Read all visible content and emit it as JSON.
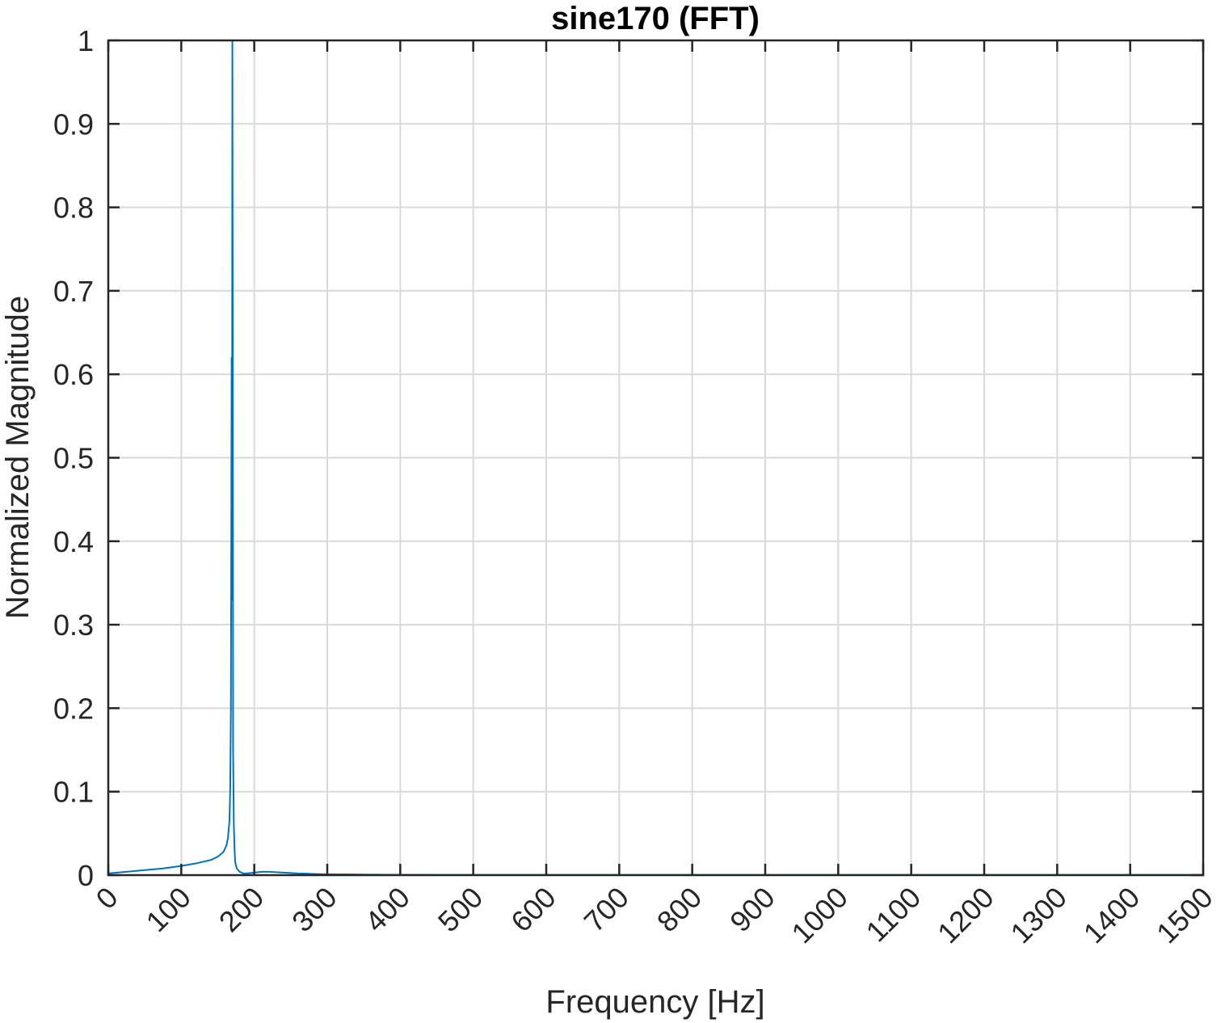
{
  "chart_data": {
    "type": "line",
    "title": "sine170 (FFT)",
    "xlabel": "Frequency [Hz]",
    "ylabel": "Normalized Magnitude",
    "xlim": [
      0,
      1500
    ],
    "ylim": [
      0,
      1
    ],
    "xticks": [
      0,
      100,
      200,
      300,
      400,
      500,
      600,
      700,
      800,
      900,
      1000,
      1100,
      1200,
      1300,
      1400,
      1500
    ],
    "xtick_labels": [
      "0",
      "100",
      "200",
      "300",
      "400",
      "500",
      "600",
      "700",
      "800",
      "900",
      "1000",
      "1100",
      "1200",
      "1300",
      "1400",
      "1500"
    ],
    "yticks": [
      0,
      0.1,
      0.2,
      0.3,
      0.4,
      0.5,
      0.6,
      0.7,
      0.8,
      0.9,
      1
    ],
    "ytick_labels": [
      "0",
      "0.1",
      "0.2",
      "0.3",
      "0.4",
      "0.5",
      "0.6",
      "0.7",
      "0.8",
      "0.9",
      "1"
    ],
    "grid": true,
    "series": [
      {
        "color": "#0072bd",
        "x": [
          0,
          25,
          50,
          75,
          100,
          120,
          140,
          150,
          158,
          162,
          164,
          166,
          167,
          168,
          169,
          169.5,
          170,
          170.5,
          171,
          172,
          173,
          174,
          176,
          180,
          185,
          190,
          200,
          210,
          220,
          240,
          260,
          280,
          300,
          330,
          360,
          400,
          450,
          500,
          600,
          700,
          800,
          900,
          1000,
          1100,
          1200,
          1300,
          1400,
          1500
        ],
        "y": [
          0.002,
          0.004,
          0.006,
          0.008,
          0.011,
          0.014,
          0.018,
          0.022,
          0.028,
          0.036,
          0.045,
          0.065,
          0.1,
          0.2,
          0.62,
          0.33,
          1.0,
          0.65,
          0.15,
          0.06,
          0.03,
          0.015,
          0.008,
          0.004,
          0.002,
          0.002,
          0.003,
          0.004,
          0.004,
          0.003,
          0.002,
          0.0015,
          0.001,
          0.0008,
          0.0006,
          0.0004,
          0.0003,
          0.0003,
          0.0002,
          0.0002,
          0.0002,
          0.0002,
          0.0002,
          0.0002,
          0.0002,
          0.0002,
          0.0002,
          0.0002
        ]
      }
    ]
  }
}
